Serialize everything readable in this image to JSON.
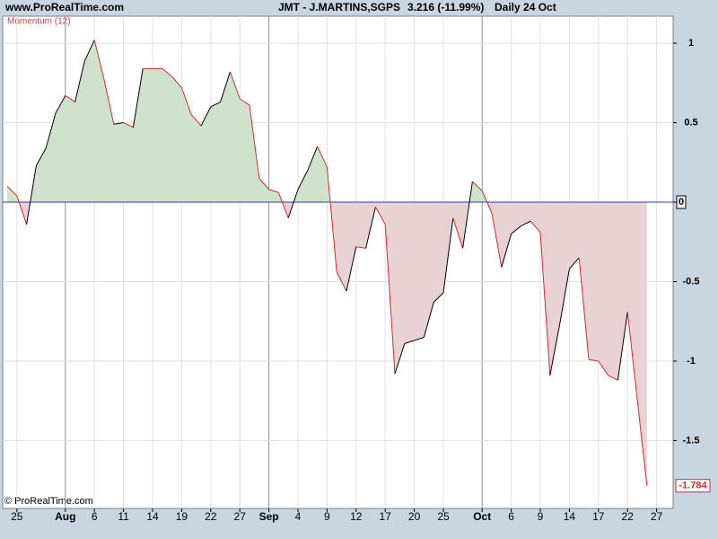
{
  "header": {
    "site": "www.ProRealTime.com",
    "title": "JMT - J.MARTINS,SGPS",
    "price": "3.216 (-11.99%)",
    "period": "Daily  24 Oct"
  },
  "footer": "© ProRealTime.com",
  "chart_data": {
    "type": "momentum",
    "title": "Momentum (12)",
    "categories": [
      null,
      "25",
      null,
      null,
      null,
      null,
      "Aug",
      null,
      null,
      "6",
      null,
      null,
      "11",
      null,
      null,
      "14",
      null,
      null,
      "19",
      null,
      null,
      "22",
      null,
      null,
      "27",
      null,
      null,
      "Sep",
      null,
      null,
      "4",
      null,
      null,
      "9",
      null,
      null,
      "12",
      null,
      null,
      "17",
      null,
      null,
      "20",
      null,
      null,
      "25",
      null,
      null,
      null,
      "Oct",
      null,
      null,
      "6",
      null,
      null,
      "9",
      null,
      null,
      "14",
      null,
      null,
      "17",
      null,
      null,
      "22",
      null,
      null,
      "27"
    ],
    "series": [
      {
        "name": "Momentum (12)",
        "values": [
          0.1,
          0.04,
          -0.14,
          0.23,
          0.34,
          0.56,
          0.67,
          0.63,
          0.89,
          1.02,
          0.77,
          0.49,
          0.5,
          0.47,
          0.84,
          0.84,
          0.84,
          0.79,
          0.72,
          0.55,
          0.48,
          0.6,
          0.63,
          0.82,
          0.65,
          0.61,
          0.15,
          0.08,
          0.06,
          -0.1,
          0.08,
          0.2,
          0.35,
          0.22,
          -0.44,
          -0.56,
          -0.28,
          -0.29,
          -0.03,
          -0.14,
          -1.08,
          -0.89,
          -0.87,
          -0.85,
          -0.63,
          -0.57,
          -0.1,
          -0.29,
          0.13,
          0.07,
          -0.07,
          -0.41,
          -0.2,
          -0.15,
          -0.12,
          -0.19,
          -1.09,
          -0.77,
          -0.42,
          -0.35,
          -0.99,
          -1.0,
          -1.09,
          -1.12,
          -0.69,
          -1.24,
          -1.784,
          null
        ]
      }
    ],
    "up_color": "#000000",
    "down_color": "#e02828",
    "positive_fill": "#cfe3cc",
    "negative_fill": "#e8d2d4",
    "zero_line_color": "#2040b0",
    "ylim": [
      -1.927,
      1.17
    ],
    "yticks": [
      1,
      0.5,
      0,
      -0.5,
      -1,
      -1.5
    ],
    "grid": true
  }
}
